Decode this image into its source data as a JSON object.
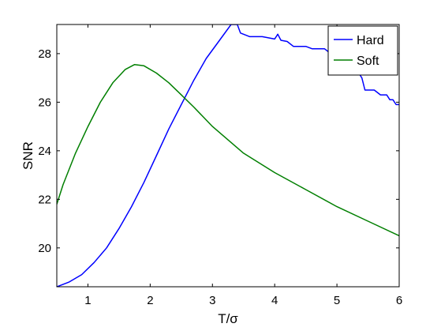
{
  "chart_data": {
    "type": "line",
    "title": "",
    "xlabel": "T/σ",
    "ylabel": "SNR",
    "xlim": [
      0.5,
      6
    ],
    "ylim": [
      18.4,
      29.2
    ],
    "xticks": [
      1,
      2,
      3,
      4,
      5,
      6
    ],
    "yticks": [
      20,
      22,
      24,
      26,
      28
    ],
    "xtick_labels": [
      "1",
      "2",
      "3",
      "4",
      "5",
      "6"
    ],
    "ytick_labels": [
      "20",
      "22",
      "24",
      "26",
      "28"
    ],
    "grid": false,
    "legend_position": "top-right",
    "series": [
      {
        "name": "Hard",
        "color": "#0000ff",
        "points": [
          [
            0.5,
            18.4
          ],
          [
            0.7,
            18.6
          ],
          [
            0.9,
            18.9
          ],
          [
            1.1,
            19.4
          ],
          [
            1.3,
            20.0
          ],
          [
            1.5,
            20.8
          ],
          [
            1.7,
            21.7
          ],
          [
            1.9,
            22.7
          ],
          [
            2.1,
            23.8
          ],
          [
            2.3,
            24.9
          ],
          [
            2.5,
            25.9
          ],
          [
            2.7,
            26.9
          ],
          [
            2.9,
            27.8
          ],
          [
            3.1,
            28.5
          ],
          [
            3.3,
            29.2
          ],
          [
            3.4,
            29.2
          ],
          [
            3.45,
            28.85
          ],
          [
            3.6,
            28.7
          ],
          [
            3.8,
            28.7
          ],
          [
            4.0,
            28.6
          ],
          [
            4.05,
            28.8
          ],
          [
            4.1,
            28.55
          ],
          [
            4.2,
            28.5
          ],
          [
            4.3,
            28.3
          ],
          [
            4.5,
            28.3
          ],
          [
            4.6,
            28.2
          ],
          [
            4.8,
            28.2
          ],
          [
            4.9,
            28.0
          ],
          [
            5.0,
            27.9
          ],
          [
            5.1,
            27.7
          ],
          [
            5.2,
            27.5
          ],
          [
            5.3,
            27.4
          ],
          [
            5.4,
            27.0
          ],
          [
            5.45,
            26.5
          ],
          [
            5.6,
            26.5
          ],
          [
            5.7,
            26.3
          ],
          [
            5.8,
            26.3
          ],
          [
            5.85,
            26.1
          ],
          [
            5.9,
            26.1
          ],
          [
            5.95,
            25.9
          ],
          [
            6.0,
            25.9
          ]
        ]
      },
      {
        "name": "Soft",
        "color": "#007f00",
        "points": [
          [
            0.5,
            21.8
          ],
          [
            0.6,
            22.6
          ],
          [
            0.8,
            23.9
          ],
          [
            1.0,
            25.0
          ],
          [
            1.2,
            26.0
          ],
          [
            1.4,
            26.8
          ],
          [
            1.6,
            27.35
          ],
          [
            1.75,
            27.55
          ],
          [
            1.9,
            27.5
          ],
          [
            2.1,
            27.2
          ],
          [
            2.3,
            26.8
          ],
          [
            2.5,
            26.3
          ],
          [
            2.7,
            25.8
          ],
          [
            3.0,
            25.0
          ],
          [
            3.5,
            23.9
          ],
          [
            4.0,
            23.1
          ],
          [
            4.5,
            22.4
          ],
          [
            5.0,
            21.7
          ],
          [
            5.5,
            21.1
          ],
          [
            6.0,
            20.5
          ]
        ]
      }
    ]
  }
}
